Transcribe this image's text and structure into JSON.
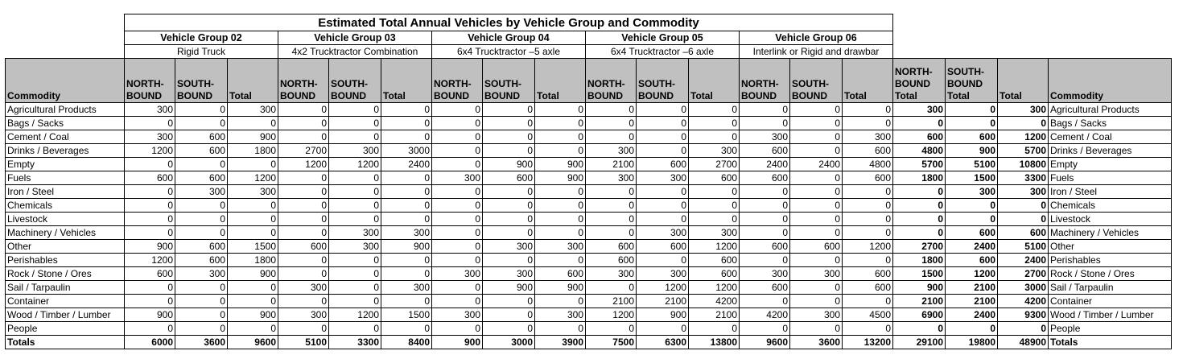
{
  "title": "Estimated Total Annual Vehicles by Vehicle Group and Commodity",
  "groups": [
    {
      "name": "Vehicle Group 02",
      "type": "Rigid Truck"
    },
    {
      "name": "Vehicle Group 03",
      "type": "4x2 Trucktractor Combination"
    },
    {
      "name": "Vehicle Group 04",
      "type": "6x4 Trucktractor –5 axle"
    },
    {
      "name": "Vehicle Group 05",
      "type": "6x4 Trucktractor –6 axle"
    },
    {
      "name": "Vehicle Group 06",
      "type": "Interlink or Rigid and drawbar"
    }
  ],
  "headers": {
    "commodity": "Commodity",
    "north": "NORTH-BOUND",
    "south": "SOUTH-BOUND",
    "total": "Total",
    "north_total": "NORTH-BOUND Total",
    "south_total": "SOUTH-BOUND Total",
    "grand_total": "Total",
    "commodity_right": "Commodity"
  },
  "rows": [
    {
      "commodity": "Agricultural Products",
      "v": [
        "300",
        "0",
        "300",
        "0",
        "0",
        "0",
        "0",
        "0",
        "0",
        "0",
        "0",
        "0",
        "0",
        "0",
        "0",
        "300",
        "0",
        "300"
      ]
    },
    {
      "commodity": "Bags / Sacks",
      "v": [
        "0",
        "0",
        "0",
        "0",
        "0",
        "0",
        "0",
        "0",
        "0",
        "0",
        "0",
        "0",
        "0",
        "0",
        "0",
        "0",
        "0",
        "0"
      ]
    },
    {
      "commodity": "Cement / Coal",
      "v": [
        "300",
        "600",
        "900",
        "0",
        "0",
        "0",
        "0",
        "0",
        "0",
        "0",
        "0",
        "0",
        "300",
        "0",
        "300",
        "600",
        "600",
        "1200"
      ]
    },
    {
      "commodity": "Drinks / Beverages",
      "v": [
        "1200",
        "600",
        "1800",
        "2700",
        "300",
        "3000",
        "0",
        "0",
        "0",
        "300",
        "0",
        "300",
        "600",
        "0",
        "600",
        "4800",
        "900",
        "5700"
      ]
    },
    {
      "commodity": "Empty",
      "v": [
        "0",
        "0",
        "0",
        "1200",
        "1200",
        "2400",
        "0",
        "900",
        "900",
        "2100",
        "600",
        "2700",
        "2400",
        "2400",
        "4800",
        "5700",
        "5100",
        "10800"
      ]
    },
    {
      "commodity": "Fuels",
      "v": [
        "600",
        "600",
        "1200",
        "0",
        "0",
        "0",
        "300",
        "600",
        "900",
        "300",
        "300",
        "600",
        "600",
        "0",
        "600",
        "1800",
        "1500",
        "3300"
      ]
    },
    {
      "commodity": "Iron / Steel",
      "v": [
        "0",
        "300",
        "300",
        "0",
        "0",
        "0",
        "0",
        "0",
        "0",
        "0",
        "0",
        "0",
        "0",
        "0",
        "0",
        "0",
        "300",
        "300"
      ]
    },
    {
      "commodity": "Chemicals",
      "v": [
        "0",
        "0",
        "0",
        "0",
        "0",
        "0",
        "0",
        "0",
        "0",
        "0",
        "0",
        "0",
        "0",
        "0",
        "0",
        "0",
        "0",
        "0"
      ]
    },
    {
      "commodity": "Livestock",
      "v": [
        "0",
        "0",
        "0",
        "0",
        "0",
        "0",
        "0",
        "0",
        "0",
        "0",
        "0",
        "0",
        "0",
        "0",
        "0",
        "0",
        "0",
        "0"
      ]
    },
    {
      "commodity": "Machinery / Vehicles",
      "v": [
        "0",
        "0",
        "0",
        "0",
        "300",
        "300",
        "0",
        "0",
        "0",
        "0",
        "300",
        "300",
        "0",
        "0",
        "0",
        "0",
        "600",
        "600"
      ]
    },
    {
      "commodity": "Other",
      "v": [
        "900",
        "600",
        "1500",
        "600",
        "300",
        "900",
        "0",
        "300",
        "300",
        "600",
        "600",
        "1200",
        "600",
        "600",
        "1200",
        "2700",
        "2400",
        "5100"
      ]
    },
    {
      "commodity": "Perishables",
      "v": [
        "1200",
        "600",
        "1800",
        "0",
        "0",
        "0",
        "0",
        "0",
        "0",
        "600",
        "0",
        "600",
        "0",
        "0",
        "0",
        "1800",
        "600",
        "2400"
      ]
    },
    {
      "commodity": "Rock / Stone / Ores",
      "v": [
        "600",
        "300",
        "900",
        "0",
        "0",
        "0",
        "300",
        "300",
        "600",
        "300",
        "300",
        "600",
        "300",
        "300",
        "600",
        "1500",
        "1200",
        "2700"
      ]
    },
    {
      "commodity": "Sail / Tarpaulin",
      "v": [
        "0",
        "0",
        "0",
        "300",
        "0",
        "300",
        "0",
        "900",
        "900",
        "0",
        "1200",
        "1200",
        "600",
        "0",
        "600",
        "900",
        "2100",
        "3000"
      ]
    },
    {
      "commodity": "Container",
      "v": [
        "0",
        "0",
        "0",
        "0",
        "0",
        "0",
        "0",
        "0",
        "0",
        "2100",
        "2100",
        "4200",
        "0",
        "0",
        "0",
        "2100",
        "2100",
        "4200"
      ]
    },
    {
      "commodity": "Wood / Timber / Lumber",
      "v": [
        "900",
        "0",
        "900",
        "300",
        "1200",
        "1500",
        "300",
        "0",
        "300",
        "1200",
        "900",
        "2100",
        "4200",
        "300",
        "4500",
        "6900",
        "2400",
        "9300"
      ]
    },
    {
      "commodity": "People",
      "v": [
        "0",
        "0",
        "0",
        "0",
        "0",
        "0",
        "0",
        "0",
        "0",
        "0",
        "0",
        "0",
        "0",
        "0",
        "0",
        "0",
        "0",
        "0"
      ]
    }
  ],
  "totals": {
    "label": "Totals",
    "v": [
      "6000",
      "3600",
      "9600",
      "5100",
      "3300",
      "8400",
      "900",
      "3000",
      "3900",
      "7500",
      "6300",
      "13800",
      "9600",
      "3600",
      "13200",
      "29100",
      "19800",
      "48900"
    ]
  }
}
